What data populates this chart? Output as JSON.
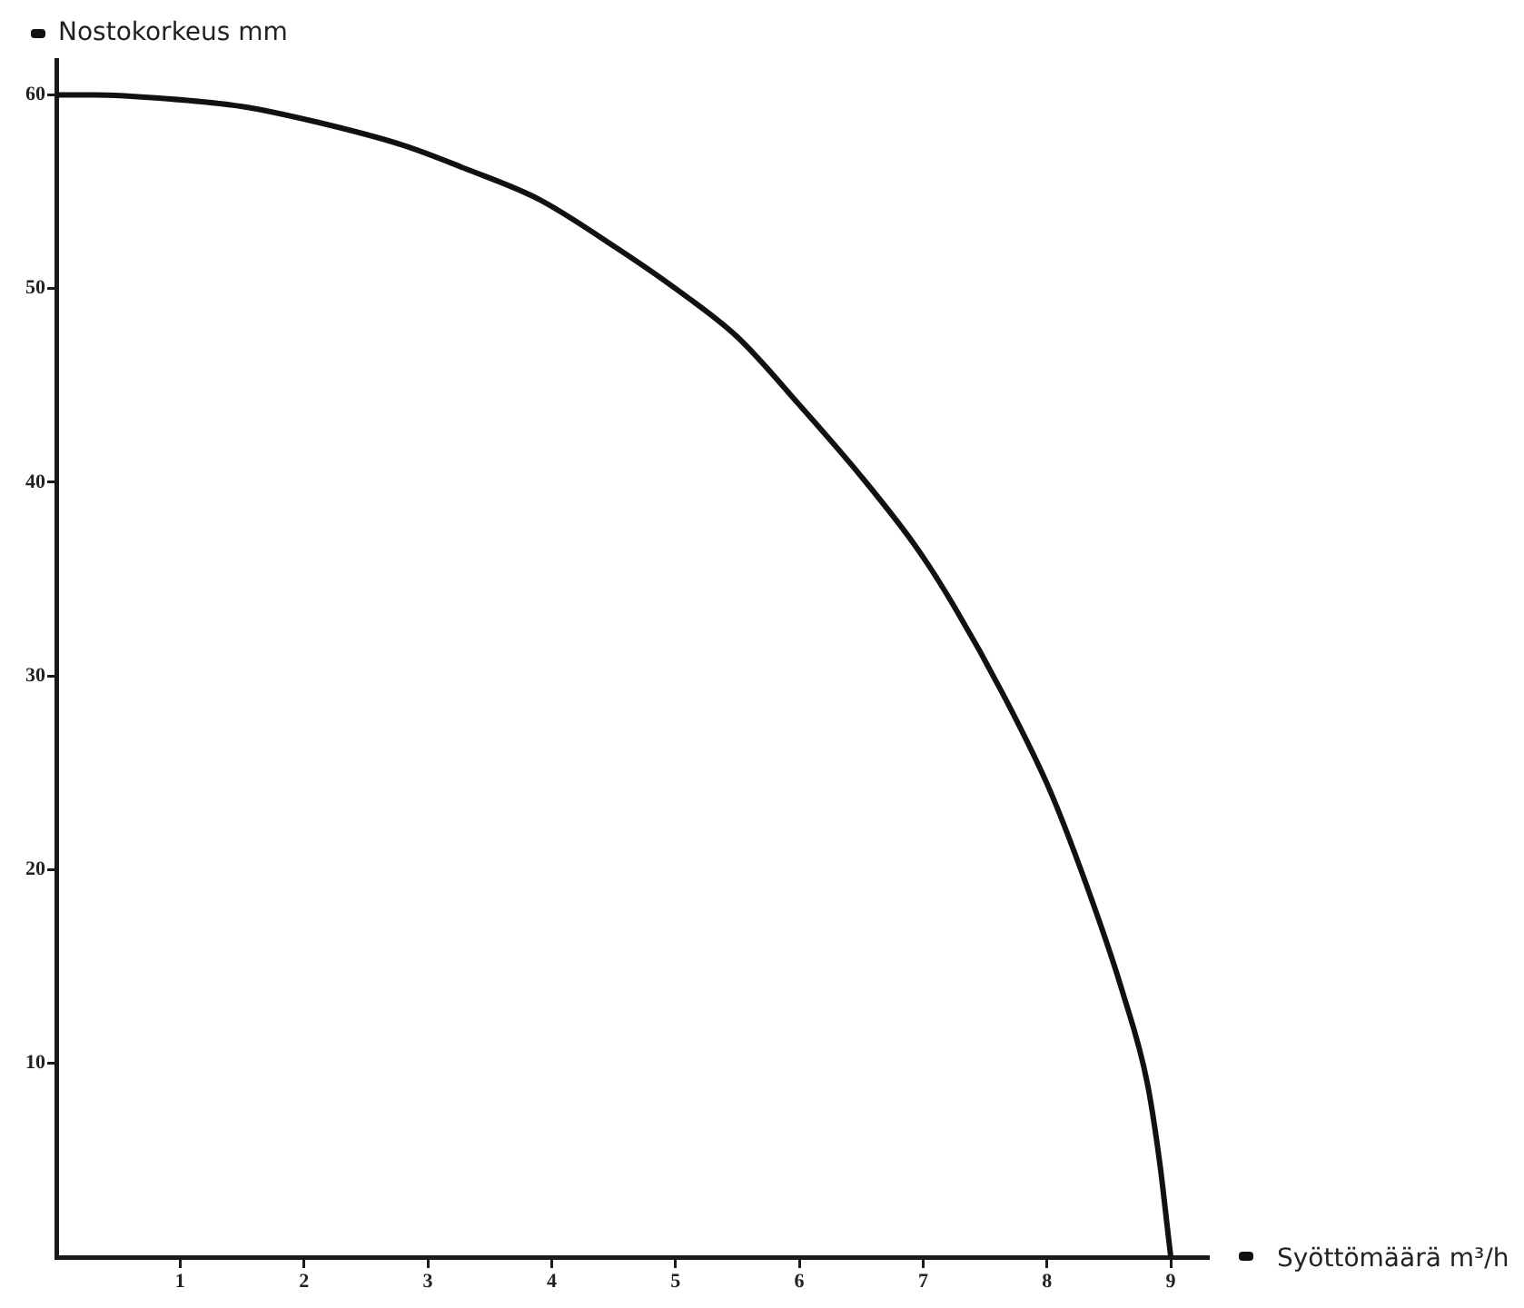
{
  "chart_data": {
    "type": "line",
    "xlabel": "Syöttömäärä m³/h",
    "ylabel": "Nostokorkeus mm",
    "x": [
      0,
      0.3,
      0.9,
      1.5,
      2.1,
      2.8,
      3.3,
      3.9,
      4.5,
      5,
      5.5,
      6,
      6.5,
      6.95,
      7.25,
      7.65,
      8.03,
      8.37,
      8.61,
      8.81,
      8.91,
      8.98,
      9
    ],
    "values": [
      60,
      60,
      59.8,
      59.4,
      58.6,
      57.4,
      56.2,
      54.6,
      52.2,
      50.0,
      47.5,
      44.0,
      40.3,
      36.6,
      33.6,
      29.0,
      24.0,
      18.3,
      13.7,
      9.0,
      4.9,
      1.1,
      0
    ],
    "color": "#111111",
    "xlim": [
      0,
      9.3
    ],
    "ylim": [
      0,
      61.8
    ],
    "xticks": [
      1,
      2,
      3,
      4,
      5,
      6,
      7,
      8,
      9
    ],
    "yticks": [
      10,
      20,
      30,
      40,
      50,
      60
    ],
    "grid": false,
    "legend": false,
    "marker": "none",
    "line_style": "solid"
  }
}
